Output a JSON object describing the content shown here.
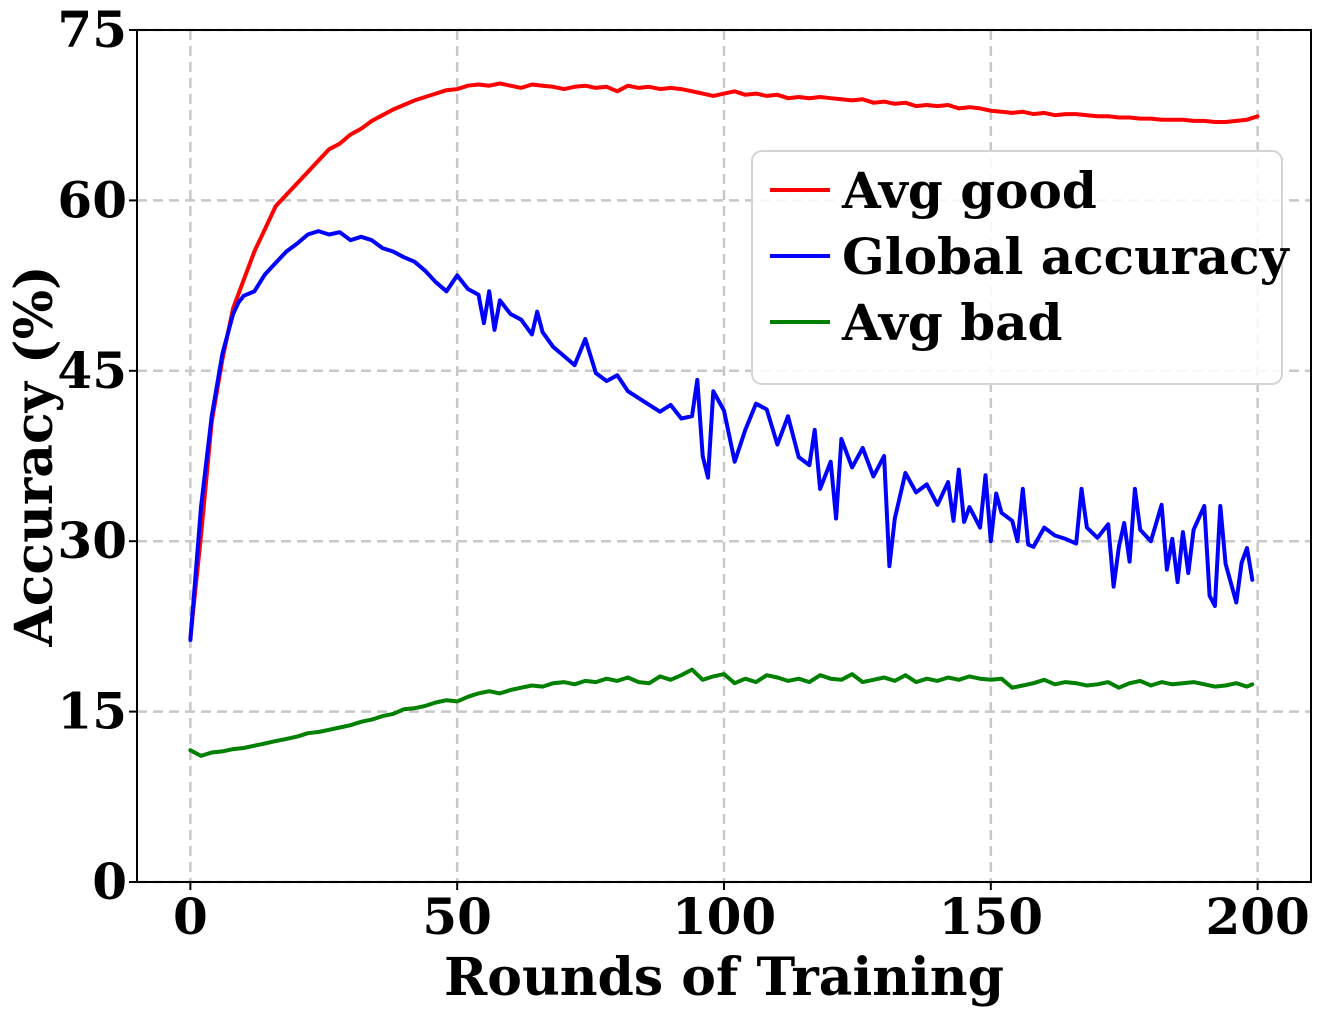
{
  "chart_data": {
    "type": "line",
    "xlabel": "Rounds of Training",
    "ylabel": "Accuracy (%)",
    "xlim": [
      -10,
      210
    ],
    "ylim": [
      0,
      75
    ],
    "xticks": [
      0,
      50,
      100,
      150,
      200
    ],
    "yticks": [
      0,
      15,
      30,
      45,
      60,
      75
    ],
    "grid": true,
    "legend_position": "upper right",
    "series": [
      {
        "name": "Avg good",
        "color": "#ff0000",
        "points": [
          [
            0,
            21.5
          ],
          [
            2,
            30.5
          ],
          [
            4,
            40.5
          ],
          [
            6,
            46
          ],
          [
            8,
            50.5
          ],
          [
            10,
            53
          ],
          [
            12,
            55.5
          ],
          [
            14,
            57.5
          ],
          [
            16,
            59.5
          ],
          [
            18,
            60.5
          ],
          [
            20,
            61.5
          ],
          [
            22,
            62.5
          ],
          [
            24,
            63.5
          ],
          [
            26,
            64.5
          ],
          [
            28,
            65
          ],
          [
            30,
            65.8
          ],
          [
            32,
            66.3
          ],
          [
            34,
            67
          ],
          [
            36,
            67.5
          ],
          [
            38,
            68
          ],
          [
            40,
            68.4
          ],
          [
            42,
            68.8
          ],
          [
            44,
            69.1
          ],
          [
            46,
            69.4
          ],
          [
            48,
            69.7
          ],
          [
            50,
            69.8
          ],
          [
            52,
            70.1
          ],
          [
            54,
            70.2
          ],
          [
            56,
            70.1
          ],
          [
            58,
            70.3
          ],
          [
            60,
            70.1
          ],
          [
            62,
            69.9
          ],
          [
            64,
            70.2
          ],
          [
            66,
            70.1
          ],
          [
            68,
            70
          ],
          [
            70,
            69.8
          ],
          [
            72,
            70
          ],
          [
            74,
            70.1
          ],
          [
            76,
            69.9
          ],
          [
            78,
            70
          ],
          [
            80,
            69.6
          ],
          [
            82,
            70.1
          ],
          [
            84,
            69.9
          ],
          [
            86,
            70
          ],
          [
            88,
            69.8
          ],
          [
            90,
            69.9
          ],
          [
            92,
            69.8
          ],
          [
            94,
            69.6
          ],
          [
            96,
            69.4
          ],
          [
            98,
            69.2
          ],
          [
            100,
            69.4
          ],
          [
            102,
            69.6
          ],
          [
            104,
            69.3
          ],
          [
            106,
            69.4
          ],
          [
            108,
            69.2
          ],
          [
            110,
            69.3
          ],
          [
            112,
            69
          ],
          [
            114,
            69.1
          ],
          [
            116,
            69
          ],
          [
            118,
            69.1
          ],
          [
            120,
            69
          ],
          [
            122,
            68.9
          ],
          [
            124,
            68.8
          ],
          [
            126,
            68.9
          ],
          [
            128,
            68.6
          ],
          [
            130,
            68.7
          ],
          [
            132,
            68.5
          ],
          [
            134,
            68.6
          ],
          [
            136,
            68.3
          ],
          [
            138,
            68.4
          ],
          [
            140,
            68.3
          ],
          [
            142,
            68.4
          ],
          [
            144,
            68.1
          ],
          [
            146,
            68.2
          ],
          [
            148,
            68.1
          ],
          [
            150,
            67.9
          ],
          [
            152,
            67.8
          ],
          [
            154,
            67.7
          ],
          [
            156,
            67.8
          ],
          [
            158,
            67.6
          ],
          [
            160,
            67.7
          ],
          [
            162,
            67.5
          ],
          [
            164,
            67.6
          ],
          [
            166,
            67.6
          ],
          [
            168,
            67.5
          ],
          [
            170,
            67.4
          ],
          [
            172,
            67.4
          ],
          [
            174,
            67.3
          ],
          [
            176,
            67.3
          ],
          [
            178,
            67.2
          ],
          [
            180,
            67.2
          ],
          [
            182,
            67.1
          ],
          [
            184,
            67.1
          ],
          [
            186,
            67.1
          ],
          [
            188,
            67
          ],
          [
            190,
            67
          ],
          [
            192,
            66.9
          ],
          [
            194,
            66.9
          ],
          [
            196,
            67
          ],
          [
            198,
            67.1
          ],
          [
            200,
            67.4
          ]
        ]
      },
      {
        "name": "Global accuracy",
        "color": "#0000ff",
        "points": [
          [
            0,
            21.3
          ],
          [
            2,
            33
          ],
          [
            4,
            41
          ],
          [
            6,
            46.5
          ],
          [
            8,
            50
          ],
          [
            9,
            51
          ],
          [
            10,
            51.6
          ],
          [
            12,
            52
          ],
          [
            14,
            53.5
          ],
          [
            16,
            54.5
          ],
          [
            18,
            55.5
          ],
          [
            20,
            56.2
          ],
          [
            22,
            57
          ],
          [
            24,
            57.3
          ],
          [
            26,
            57
          ],
          [
            28,
            57.2
          ],
          [
            30,
            56.5
          ],
          [
            32,
            56.8
          ],
          [
            34,
            56.5
          ],
          [
            36,
            55.8
          ],
          [
            38,
            55.5
          ],
          [
            40,
            55
          ],
          [
            42,
            54.6
          ],
          [
            44,
            53.8
          ],
          [
            46,
            52.8
          ],
          [
            48,
            52
          ],
          [
            50,
            53.4
          ],
          [
            52,
            52.2
          ],
          [
            54,
            51.7
          ],
          [
            55,
            49.2
          ],
          [
            56,
            52
          ],
          [
            57,
            48.6
          ],
          [
            58,
            51.2
          ],
          [
            60,
            50
          ],
          [
            62,
            49.5
          ],
          [
            64,
            48.2
          ],
          [
            65,
            50.2
          ],
          [
            66,
            48.4
          ],
          [
            68,
            47.1
          ],
          [
            70,
            46.3
          ],
          [
            72,
            45.5
          ],
          [
            74,
            47.8
          ],
          [
            76,
            44.8
          ],
          [
            78,
            44.1
          ],
          [
            80,
            44.6
          ],
          [
            82,
            43.2
          ],
          [
            84,
            42.6
          ],
          [
            86,
            42
          ],
          [
            88,
            41.4
          ],
          [
            90,
            42
          ],
          [
            92,
            40.8
          ],
          [
            94,
            41
          ],
          [
            95,
            44.2
          ],
          [
            96,
            37.5
          ],
          [
            97,
            35.6
          ],
          [
            98,
            43.2
          ],
          [
            100,
            41.5
          ],
          [
            102,
            37
          ],
          [
            104,
            39.8
          ],
          [
            106,
            42.1
          ],
          [
            108,
            41.6
          ],
          [
            110,
            38.5
          ],
          [
            112,
            41
          ],
          [
            114,
            37.4
          ],
          [
            116,
            36.7
          ],
          [
            117,
            39.8
          ],
          [
            118,
            34.6
          ],
          [
            120,
            37
          ],
          [
            121,
            32
          ],
          [
            122,
            39
          ],
          [
            124,
            36.5
          ],
          [
            126,
            38.2
          ],
          [
            128,
            35.7
          ],
          [
            130,
            37.5
          ],
          [
            131,
            27.8
          ],
          [
            132,
            32
          ],
          [
            134,
            36
          ],
          [
            136,
            34.3
          ],
          [
            138,
            35
          ],
          [
            140,
            33.2
          ],
          [
            142,
            35.2
          ],
          [
            143,
            31.8
          ],
          [
            144,
            36.3
          ],
          [
            145,
            31.7
          ],
          [
            146,
            33
          ],
          [
            148,
            31.2
          ],
          [
            149,
            35.8
          ],
          [
            150,
            30
          ],
          [
            151,
            34.2
          ],
          [
            152,
            32.5
          ],
          [
            154,
            31.8
          ],
          [
            155,
            30
          ],
          [
            156,
            34.6
          ],
          [
            157,
            29.7
          ],
          [
            158,
            29.5
          ],
          [
            160,
            31.2
          ],
          [
            162,
            30.5
          ],
          [
            164,
            30.2
          ],
          [
            166,
            29.8
          ],
          [
            167,
            34.6
          ],
          [
            168,
            31.2
          ],
          [
            170,
            30.3
          ],
          [
            172,
            31.5
          ],
          [
            173,
            26
          ],
          [
            174,
            29.5
          ],
          [
            175,
            31.6
          ],
          [
            176,
            28.2
          ],
          [
            177,
            34.6
          ],
          [
            178,
            31
          ],
          [
            180,
            30
          ],
          [
            182,
            33.2
          ],
          [
            183,
            27.5
          ],
          [
            184,
            30.2
          ],
          [
            185,
            26.4
          ],
          [
            186,
            30.8
          ],
          [
            187,
            27.2
          ],
          [
            188,
            31
          ],
          [
            190,
            33.1
          ],
          [
            191,
            25.2
          ],
          [
            192,
            24.3
          ],
          [
            193,
            33.1
          ],
          [
            194,
            28
          ],
          [
            196,
            24.6
          ],
          [
            197,
            28.1
          ],
          [
            198,
            29.4
          ],
          [
            199,
            26.6
          ]
        ]
      },
      {
        "name": "Avg bad",
        "color": "#008000",
        "points": [
          [
            0,
            11.6
          ],
          [
            2,
            11.1
          ],
          [
            4,
            11.4
          ],
          [
            6,
            11.5
          ],
          [
            8,
            11.7
          ],
          [
            10,
            11.8
          ],
          [
            12,
            12
          ],
          [
            14,
            12.2
          ],
          [
            16,
            12.4
          ],
          [
            18,
            12.6
          ],
          [
            20,
            12.8
          ],
          [
            22,
            13.1
          ],
          [
            24,
            13.2
          ],
          [
            26,
            13.4
          ],
          [
            28,
            13.6
          ],
          [
            30,
            13.8
          ],
          [
            32,
            14.1
          ],
          [
            34,
            14.3
          ],
          [
            36,
            14.6
          ],
          [
            38,
            14.8
          ],
          [
            40,
            15.2
          ],
          [
            42,
            15.3
          ],
          [
            44,
            15.5
          ],
          [
            46,
            15.8
          ],
          [
            48,
            16
          ],
          [
            50,
            15.9
          ],
          [
            52,
            16.3
          ],
          [
            54,
            16.6
          ],
          [
            56,
            16.8
          ],
          [
            58,
            16.6
          ],
          [
            60,
            16.9
          ],
          [
            62,
            17.1
          ],
          [
            64,
            17.3
          ],
          [
            66,
            17.2
          ],
          [
            68,
            17.5
          ],
          [
            70,
            17.6
          ],
          [
            72,
            17.4
          ],
          [
            74,
            17.7
          ],
          [
            76,
            17.6
          ],
          [
            78,
            17.9
          ],
          [
            80,
            17.7
          ],
          [
            82,
            18
          ],
          [
            84,
            17.6
          ],
          [
            86,
            17.5
          ],
          [
            88,
            18.1
          ],
          [
            90,
            17.8
          ],
          [
            92,
            18.2
          ],
          [
            94,
            18.7
          ],
          [
            96,
            17.8
          ],
          [
            98,
            18.1
          ],
          [
            100,
            18.3
          ],
          [
            102,
            17.5
          ],
          [
            104,
            17.9
          ],
          [
            106,
            17.6
          ],
          [
            108,
            18.2
          ],
          [
            110,
            18
          ],
          [
            112,
            17.7
          ],
          [
            114,
            17.9
          ],
          [
            116,
            17.6
          ],
          [
            118,
            18.2
          ],
          [
            120,
            17.9
          ],
          [
            122,
            17.8
          ],
          [
            124,
            18.3
          ],
          [
            126,
            17.6
          ],
          [
            128,
            17.8
          ],
          [
            130,
            18
          ],
          [
            132,
            17.7
          ],
          [
            134,
            18.2
          ],
          [
            136,
            17.6
          ],
          [
            138,
            17.9
          ],
          [
            140,
            17.7
          ],
          [
            142,
            18
          ],
          [
            144,
            17.8
          ],
          [
            146,
            18.1
          ],
          [
            148,
            17.9
          ],
          [
            150,
            17.8
          ],
          [
            152,
            17.9
          ],
          [
            154,
            17.1
          ],
          [
            156,
            17.3
          ],
          [
            158,
            17.5
          ],
          [
            160,
            17.8
          ],
          [
            162,
            17.4
          ],
          [
            164,
            17.6
          ],
          [
            166,
            17.5
          ],
          [
            168,
            17.3
          ],
          [
            170,
            17.4
          ],
          [
            172,
            17.6
          ],
          [
            174,
            17.1
          ],
          [
            176,
            17.5
          ],
          [
            178,
            17.7
          ],
          [
            180,
            17.3
          ],
          [
            182,
            17.6
          ],
          [
            184,
            17.4
          ],
          [
            186,
            17.5
          ],
          [
            188,
            17.6
          ],
          [
            190,
            17.4
          ],
          [
            192,
            17.2
          ],
          [
            194,
            17.3
          ],
          [
            196,
            17.5
          ],
          [
            198,
            17.2
          ],
          [
            199,
            17.4
          ]
        ]
      }
    ]
  }
}
